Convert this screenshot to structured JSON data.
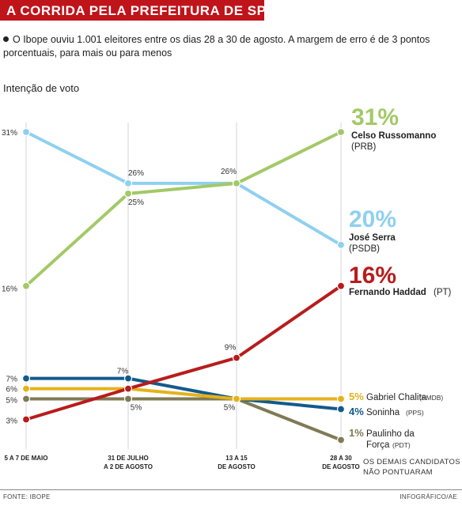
{
  "header": {
    "title": "A CORRIDA PELA PREFEITURA DE SP",
    "subtitle": "O Ibope ouviu 1.001 eleitores entre os dias 28 a 30 de agosto. A margem de erro é de 3 pontos porcentuais, para mais ou para menos"
  },
  "footer": {
    "source": "FONTE: IBOPE",
    "credit": "INFOGRÁFICO/AE",
    "note_line1": "OS DEMAIS CANDIDATOS",
    "note_line2": "NÃO PONTUARAM"
  },
  "chart_data": {
    "type": "line",
    "ylabel": "Intenção de voto",
    "categories": [
      [
        "5 A 7 DE MAIO"
      ],
      [
        "31 DE JULHO",
        "A 2 DE AGOSTO"
      ],
      [
        "13 A 15",
        "DE AGOSTO"
      ],
      [
        "28 A 30",
        "DE AGOSTO"
      ]
    ],
    "ylim": [
      0,
      31
    ],
    "grid": "vertical",
    "series": [
      {
        "name": "Celso Russomanno",
        "party": "(PRB)",
        "color": "#a2c966",
        "values": [
          16,
          25,
          26,
          31
        ]
      },
      {
        "name": "José Serra",
        "party": "(PSDB)",
        "color": "#8fd0f0",
        "values": [
          31,
          26,
          26,
          20
        ]
      },
      {
        "name": "Fernando Haddad",
        "party": "(PT)",
        "color": "#b81c1c",
        "values": [
          3,
          6,
          9,
          16
        ]
      },
      {
        "name": "Gabriel Chalita",
        "party": "(PMDB)",
        "color": "#e5b21b",
        "values": [
          6,
          6,
          5,
          5
        ]
      },
      {
        "name": "Soninha",
        "party": "(PPS)",
        "color": "#135a8c",
        "values": [
          7,
          7,
          5,
          4
        ]
      },
      {
        "name": "Paulinho da Força",
        "party": "(PDT)",
        "color": "#807a55",
        "values": [
          5,
          5,
          5,
          1
        ]
      }
    ],
    "point_labels": [
      {
        "text": "31%",
        "series": 1,
        "index": 0
      },
      {
        "text": "16%",
        "series": 0,
        "index": 0
      },
      {
        "text": "7%",
        "series": 4,
        "index": 0
      },
      {
        "text": "6%",
        "series": 3,
        "index": 0
      },
      {
        "text": "5%",
        "series": 5,
        "index": 0
      },
      {
        "text": "3%",
        "series": 2,
        "index": 0
      },
      {
        "text": "26%",
        "series": 1,
        "index": 1
      },
      {
        "text": "25%",
        "series": 0,
        "index": 1
      },
      {
        "text": "7%",
        "series": 4,
        "index": 1
      },
      {
        "text": "5%",
        "series": 5,
        "index": 1
      },
      {
        "text": "26%",
        "series": 1,
        "index": 2
      },
      {
        "text": "9%",
        "series": 2,
        "index": 2
      },
      {
        "text": "5%",
        "series": 5,
        "index": 2
      }
    ],
    "end_labels": [
      {
        "series": 0,
        "value": "31%",
        "name": "Celso Russomanno",
        "party": "(PRB)"
      },
      {
        "series": 1,
        "value": "20%",
        "name": "José Serra",
        "party": "(PSDB)"
      },
      {
        "series": 2,
        "value": "16%",
        "name": "Fernando Haddad",
        "party": "(PT)"
      },
      {
        "series": 3,
        "value": "5%",
        "name": "Gabriel Chalita",
        "party": "(PMDB)"
      },
      {
        "series": 4,
        "value": "4%",
        "name": "Soninha",
        "party": "(PPS)"
      },
      {
        "series": 5,
        "value": "1%",
        "name": "Paulinho da",
        "name2": "Força",
        "party": "(PDT)"
      }
    ]
  }
}
